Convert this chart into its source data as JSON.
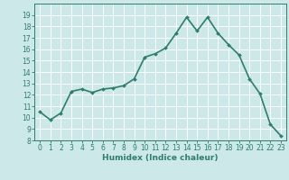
{
  "x": [
    0,
    1,
    2,
    3,
    4,
    5,
    6,
    7,
    8,
    9,
    10,
    11,
    12,
    13,
    14,
    15,
    16,
    17,
    18,
    19,
    20,
    21,
    22,
    23
  ],
  "y": [
    10.5,
    9.8,
    10.4,
    12.3,
    12.5,
    12.2,
    12.5,
    12.6,
    12.8,
    13.4,
    15.3,
    15.6,
    16.1,
    17.4,
    18.8,
    17.6,
    18.8,
    17.4,
    16.4,
    15.5,
    13.4,
    12.1,
    9.4,
    8.4
  ],
  "line_color": "#2e7d6e",
  "marker": "D",
  "marker_size": 2.0,
  "bg_color": "#cce8e8",
  "grid_color": "#ffffff",
  "xlabel": "Humidex (Indice chaleur)",
  "xlim": [
    -0.5,
    23.5
  ],
  "ylim": [
    8,
    20
  ],
  "yticks": [
    8,
    9,
    10,
    11,
    12,
    13,
    14,
    15,
    16,
    17,
    18,
    19
  ],
  "xticks": [
    0,
    1,
    2,
    3,
    4,
    5,
    6,
    7,
    8,
    9,
    10,
    11,
    12,
    13,
    14,
    15,
    16,
    17,
    18,
    19,
    20,
    21,
    22,
    23
  ],
  "axis_color": "#2e7d6e",
  "tick_color": "#2e7d6e",
  "label_color": "#2e7d6e",
  "font_size_xlabel": 6.5,
  "font_size_ticks": 5.5,
  "line_width": 1.2
}
